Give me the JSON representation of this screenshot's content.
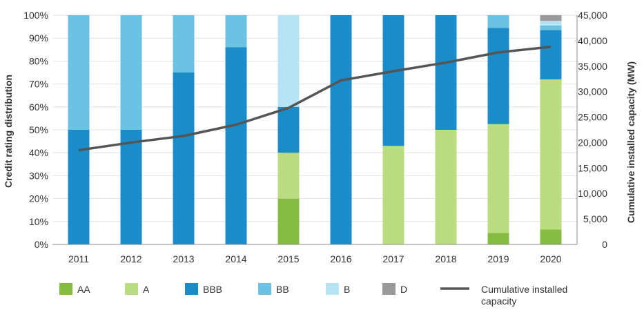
{
  "chart_data": {
    "type": "bar",
    "stacked": true,
    "categories": [
      "2011",
      "2012",
      "2013",
      "2014",
      "2015",
      "2016",
      "2017",
      "2018",
      "2019",
      "2020"
    ],
    "ylabel": "Credit rating distribution",
    "y2label": "Cumulative installed capacity (MW)",
    "ylim": [
      0,
      100
    ],
    "y2lim": [
      0,
      45000
    ],
    "yticks": [
      "0%",
      "10%",
      "20%",
      "30%",
      "40%",
      "50%",
      "60%",
      "70%",
      "80%",
      "90%",
      "100%"
    ],
    "y2ticks": [
      "0",
      "5,000",
      "10,000",
      "15,000",
      "20,000",
      "25,000",
      "30,000",
      "35,000",
      "40,000",
      "45,000"
    ],
    "grid": true,
    "legend_position": "bottom",
    "series": [
      {
        "name": "AA",
        "color": "#86bc42",
        "values": [
          0,
          0,
          0,
          0,
          20,
          0,
          0,
          0,
          5,
          6.5
        ]
      },
      {
        "name": "A",
        "color": "#b9dd80",
        "values": [
          0,
          0,
          0,
          0,
          20,
          0,
          43,
          50,
          47.5,
          65.5
        ]
      },
      {
        "name": "BBB",
        "color": "#1a8cc8",
        "values": [
          50,
          50,
          75,
          86,
          20,
          100,
          57,
          50,
          42,
          21.5
        ]
      },
      {
        "name": "BB",
        "color": "#6cc2e3",
        "values": [
          50,
          50,
          25,
          14,
          0,
          0,
          0,
          0,
          5.5,
          2
        ]
      },
      {
        "name": "B",
        "color": "#b6e4f5",
        "values": [
          0,
          0,
          0,
          0,
          40,
          0,
          0,
          0,
          0,
          2
        ]
      },
      {
        "name": "D",
        "color": "#9a9a9a",
        "values": [
          0,
          0,
          0,
          0,
          0,
          0,
          0,
          0,
          0,
          2.5
        ]
      }
    ],
    "line": {
      "name": "Cumulative installed capacity",
      "color": "#555555",
      "axis": "right",
      "values": [
        18500,
        20000,
        21300,
        23500,
        26800,
        32200,
        34000,
        35700,
        37700,
        38800
      ]
    }
  }
}
